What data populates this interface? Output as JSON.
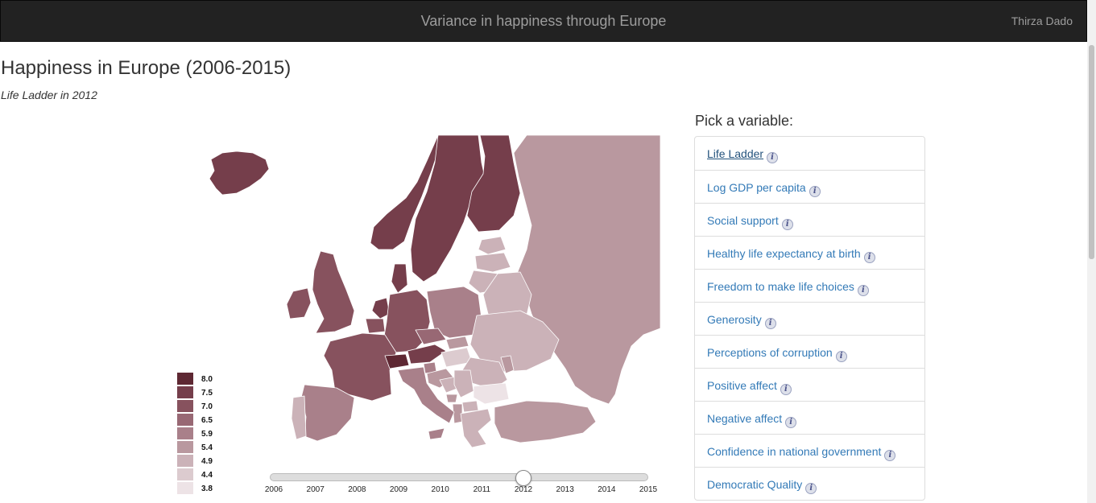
{
  "navbar": {
    "title": "Variance in happiness through Europe",
    "user": "Thirza Dado"
  },
  "page": {
    "title": "Happiness in Europe (2006-2015)",
    "subtitle": "Life Ladder in 2012"
  },
  "picker": {
    "title": "Pick a variable:",
    "items": [
      {
        "label": "Life Ladder",
        "active": true
      },
      {
        "label": "Log GDP per capita"
      },
      {
        "label": "Social support"
      },
      {
        "label": "Healthy life expectancy at birth"
      },
      {
        "label": "Freedom to make life choices"
      },
      {
        "label": "Generosity"
      },
      {
        "label": "Perceptions of corruption"
      },
      {
        "label": "Positive affect"
      },
      {
        "label": "Negative affect"
      },
      {
        "label": "Confidence in national government"
      },
      {
        "label": "Democratic Quality"
      }
    ],
    "info_icon": "info-icon"
  },
  "legend": [
    {
      "label": "8.0",
      "color": "#5e2833"
    },
    {
      "label": "7.5",
      "color": "#753e4b"
    },
    {
      "label": "7.0",
      "color": "#87525e"
    },
    {
      "label": "6.5",
      "color": "#986874"
    },
    {
      "label": "5.9",
      "color": "#a9808a"
    },
    {
      "label": "5.4",
      "color": "#b9989f"
    },
    {
      "label": "4.9",
      "color": "#cbb2b8"
    },
    {
      "label": "4.4",
      "color": "#dccbcf"
    },
    {
      "label": "3.8",
      "color": "#ede3e6"
    }
  ],
  "slider": {
    "years": [
      "2006",
      "2007",
      "2008",
      "2009",
      "2010",
      "2011",
      "2012",
      "2013",
      "2014",
      "2015"
    ],
    "selected": "2012"
  }
}
